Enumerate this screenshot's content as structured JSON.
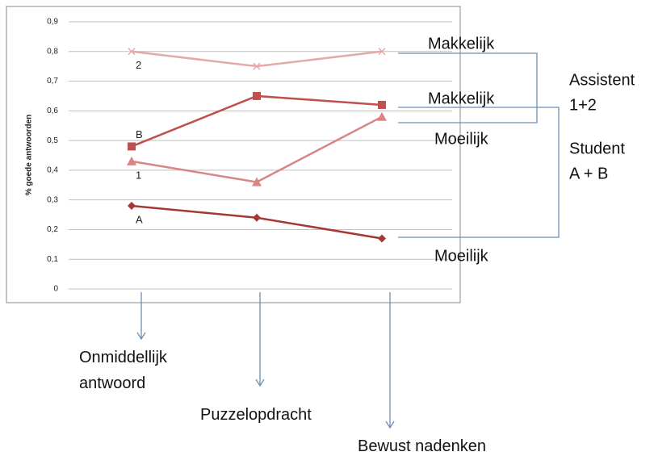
{
  "chart_data": {
    "type": "line",
    "ylabel": "% goede antwoorden",
    "categories": [
      "Onmiddellijk antwoord",
      "Puzzelopdracht",
      "Bewust nadenken"
    ],
    "series": [
      {
        "name": "2",
        "color": "#e3aaa9",
        "marker": "x",
        "values": [
          0.8,
          0.75,
          0.8
        ]
      },
      {
        "name": "B",
        "color": "#c0504d",
        "marker": "square",
        "values": [
          0.48,
          0.65,
          0.62
        ]
      },
      {
        "name": "1",
        "color": "#d98583",
        "marker": "triangle",
        "values": [
          0.43,
          0.36,
          0.58
        ]
      },
      {
        "name": "A",
        "color": "#a53734",
        "marker": "diamond",
        "values": [
          0.28,
          0.24,
          0.17
        ]
      }
    ],
    "ylim": [
      0,
      0.9
    ],
    "yticks": [
      0,
      {
        "value": 0.1,
        "label": "0,1"
      },
      {
        "value": 0.2,
        "label": "0,2"
      },
      {
        "value": 0.3,
        "label": "0,3"
      },
      {
        "value": 0.4,
        "label": "0,4"
      },
      {
        "value": 0.5,
        "label": "0,5"
      },
      {
        "value": 0.6,
        "label": "0,6"
      },
      {
        "value": 0.7,
        "label": "0,7"
      },
      {
        "value": 0.8,
        "label": "0,8"
      },
      {
        "value": 0.9,
        "label": "0,9"
      }
    ],
    "grid": true,
    "annotations": [
      "Makkelijk",
      "Makkelijk",
      "Moeilijk",
      "Moeilijk"
    ],
    "group_labels": [
      [
        "Assistent",
        "1+2"
      ],
      [
        "Student",
        "A + B"
      ]
    ]
  }
}
